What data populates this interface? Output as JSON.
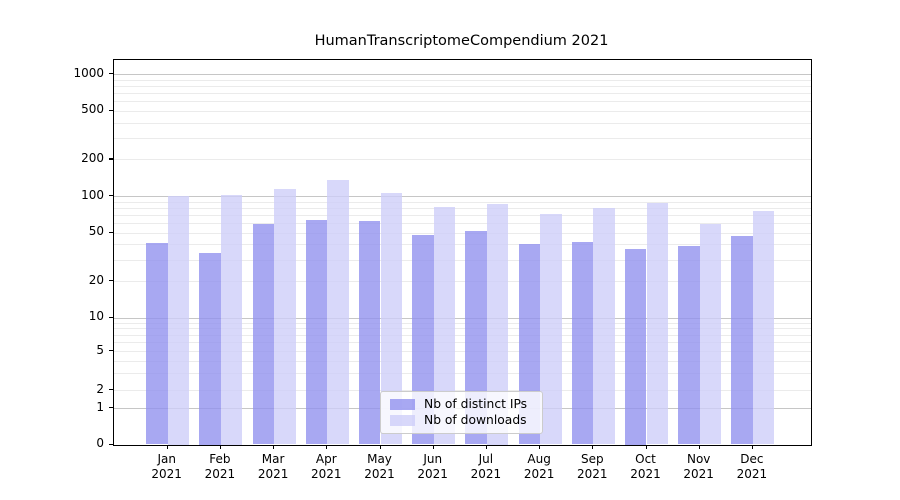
{
  "chart_data": {
    "type": "bar",
    "title": "HumanTranscriptomeCompendium 2021",
    "categories": [
      "Jan 2021",
      "Feb 2021",
      "Mar 2021",
      "Apr 2021",
      "May 2021",
      "Jun 2021",
      "Jul 2021",
      "Aug 2021",
      "Sep 2021",
      "Oct 2021",
      "Nov 2021",
      "Dec 2021"
    ],
    "series": [
      {
        "name": "Nb of distinct IPs",
        "color": "#8f8fee",
        "values": [
          41,
          34,
          59,
          64,
          62,
          48,
          52,
          40,
          42,
          37,
          39,
          47
        ]
      },
      {
        "name": "Nb of downloads",
        "color": "#cdcdf8",
        "values": [
          100,
          102,
          114,
          135,
          106,
          81,
          86,
          71,
          80,
          88,
          59,
          75
        ]
      }
    ],
    "xlabel": "",
    "ylabel": "",
    "y_scale": "symlog",
    "yticks": [
      0,
      1,
      2,
      5,
      10,
      20,
      50,
      100,
      200,
      500,
      1000
    ],
    "ylim": [
      0,
      1300
    ],
    "grid": "horizontal, minor log gridlines",
    "legend_position": "lower center",
    "gridline_minor_color": "#ebebeb",
    "gridline_major_color": "#c6c6c6"
  }
}
